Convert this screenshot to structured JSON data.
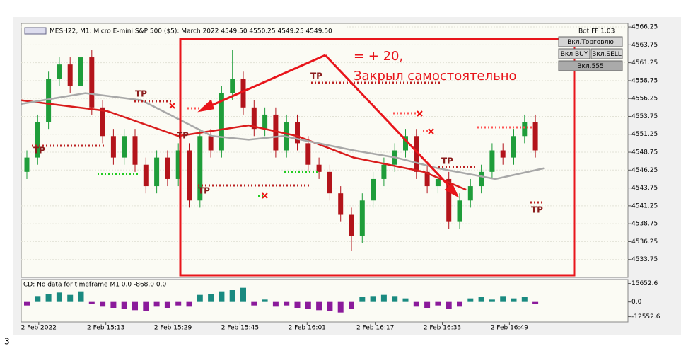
{
  "window": {
    "header": "MESH22, M1:  Micro E-mini S&P 500 ($5): March 2022  4549.50 4550.25 4549.25 4549.50",
    "bot_label": "Bot FF 1.03",
    "buttons": [
      "Вкл.Торговлю",
      "Вкл.BUY",
      "Вкл.SELL",
      "Вкл.555"
    ],
    "annotation": [
      "= + 20,",
      "Закрыл самостоятельно"
    ],
    "tp_labels": [
      "TP",
      "TP",
      "TP",
      "TP",
      "TP",
      "TP",
      "TP"
    ],
    "page_number": "3"
  },
  "chart_data": [
    {
      "type": "candlestick",
      "open": [
        4546,
        4548,
        4553,
        4559,
        4561,
        4558,
        4562,
        4555,
        4551,
        4548,
        4551,
        4547,
        4544,
        4548,
        4545,
        4549,
        4542,
        4551,
        4549,
        4557,
        4559,
        4555,
        4552,
        4554,
        4549,
        4553,
        4550,
        4547,
        4546,
        4543,
        4540,
        4537,
        4542,
        4545,
        4547,
        4549,
        4551,
        4546,
        4544,
        4545,
        4539,
        4542,
        4544,
        4546,
        4549,
        4548,
        4551,
        4553
      ],
      "high": [
        4549,
        4554,
        4560,
        4562,
        4562,
        4563,
        4563,
        4556,
        4552,
        4552,
        4552,
        4548,
        4549,
        4549,
        4550,
        4550,
        4552,
        4552,
        4558,
        4563,
        4560,
        4556,
        4555,
        4555,
        4554,
        4554,
        4551,
        4548,
        4547,
        4544,
        4541,
        4543,
        4546,
        4548,
        4550,
        4552,
        4552,
        4547,
        4546,
        4546,
        4543,
        4545,
        4547,
        4550,
        4550,
        4552,
        4554,
        4554
      ],
      "low": [
        4545,
        4547,
        4552,
        4558,
        4557,
        4557,
        4554,
        4550,
        4547,
        4547,
        4546,
        4543,
        4543,
        4544,
        4544,
        4541,
        4541,
        4548,
        4548,
        4556,
        4554,
        4551,
        4551,
        4548,
        4548,
        4549,
        4546,
        4545,
        4542,
        4539,
        4535,
        4536,
        4541,
        4544,
        4546,
        4548,
        4545,
        4543,
        4543,
        4538,
        4538,
        4541,
        4543,
        4545,
        4547,
        4547,
        4550,
        4548
      ],
      "close": [
        4548,
        4553,
        4559,
        4561,
        4558,
        4562,
        4555,
        4551,
        4548,
        4551,
        4547,
        4544,
        4548,
        4545,
        4549,
        4542,
        4551,
        4549,
        4557,
        4559,
        4555,
        4552,
        4554,
        4549,
        4553,
        4550,
        4547,
        4546,
        4543,
        4540,
        4537,
        4542,
        4545,
        4547,
        4549,
        4551,
        4546,
        4544,
        4545,
        4539,
        4542,
        4544,
        4546,
        4549,
        4548,
        4551,
        4553,
        4549
      ],
      "up_color": "#1f9d3a",
      "down_color": "#b3141b",
      "lines": [
        {
          "color": "#d91c1c",
          "x": [
            -0.5,
            7.4,
            14,
            20.5,
            25,
            30.2,
            36.7,
            40.6
          ],
          "values": [
            4556,
            4554.5,
            4551,
            4552.5,
            4551,
            4548,
            4546,
            4543.5
          ]
        },
        {
          "color": "#a8a8a8",
          "x": [
            -0.5,
            5.4,
            10.6,
            17.1,
            20.5,
            23.7,
            30.2,
            34.1,
            38,
            43.3,
            47.8
          ],
          "values": [
            4555.5,
            4557,
            4556,
            4551,
            4550.5,
            4551,
            4549,
            4548,
            4546.5,
            4545,
            4546.5
          ]
        }
      ],
      "ylim": [
        4531.25,
        4566.75
      ],
      "yticks": [
        4566.25,
        4563.75,
        4561.25,
        4558.75,
        4556.25,
        4553.75,
        4551.25,
        4548.75,
        4546.25,
        4543.75,
        4541.25,
        4538.75,
        4536.25,
        4533.75
      ]
    },
    {
      "type": "bar",
      "title": "CD: No data for timeframe M1 0.0 -868.0 0.0",
      "values": [
        -3000,
        5000,
        7000,
        8000,
        6000,
        9000,
        -2000,
        -4000,
        -5000,
        -6000,
        -7000,
        -8000,
        -4000,
        -5000,
        -3000,
        -4000,
        6000,
        7000,
        9000,
        10000,
        12000,
        -3000,
        2000,
        -4000,
        -3000,
        -5000,
        -6000,
        -7000,
        -8000,
        -9000,
        -6000,
        4000,
        5000,
        6000,
        5000,
        3000,
        -4000,
        -5000,
        -3000,
        -6000,
        -4000,
        3000,
        4000,
        2000,
        5000,
        3000,
        4000,
        -2000
      ],
      "colors": [
        "#1a8a80",
        "#8b1a9b"
      ],
      "ylim": [
        -17000,
        19000
      ],
      "yticks": [
        15652.6,
        {
          "value": 0,
          "label": "0.0"
        },
        -12552.6
      ],
      "xticks": [
        {
          "value": 1.1,
          "label": "2 Feb 2022"
        },
        {
          "value": 7.3,
          "label": "2 Feb 15:13"
        },
        {
          "value": 13.5,
          "label": "2 Feb 15:29"
        },
        {
          "value": 19.7,
          "label": "2 Feb 15:45"
        },
        {
          "value": 25.9,
          "label": "2 Feb 16:01"
        },
        {
          "value": 32.2,
          "label": "2 Feb 16:17"
        },
        {
          "value": 38.4,
          "label": "2 Feb 16:33"
        },
        {
          "value": 44.6,
          "label": "2 Feb 16:49"
        }
      ]
    }
  ]
}
